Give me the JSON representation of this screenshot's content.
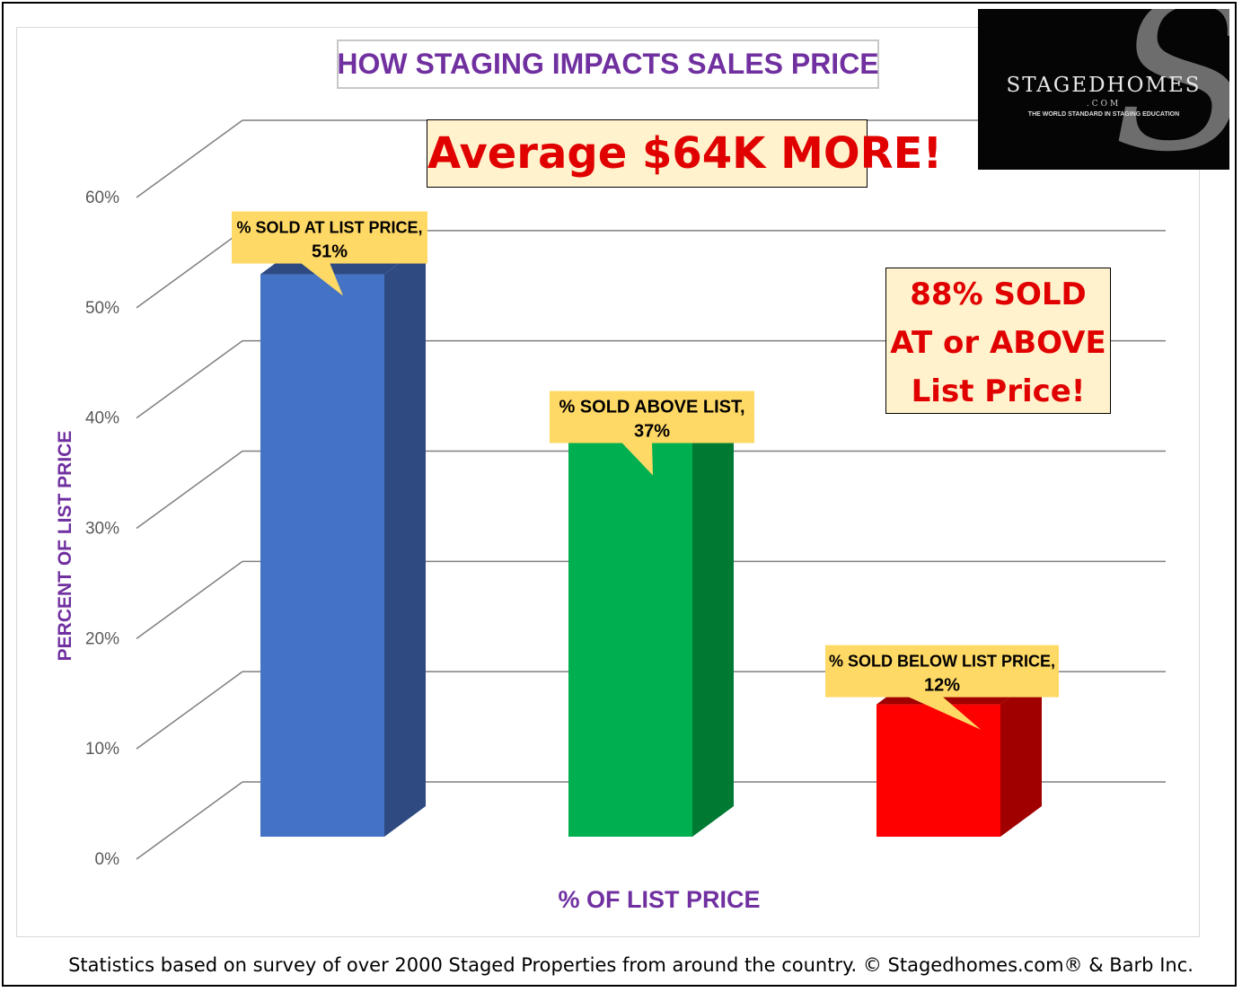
{
  "chart_data": {
    "type": "bar",
    "title": "HOW STAGING IMPACTS SALES PRICE",
    "xlabel": "% OF LIST PRICE",
    "ylabel": "PERCENT OF LIST PRICE",
    "ylim": [
      0,
      60
    ],
    "yticks": [
      "0%",
      "10%",
      "20%",
      "30%",
      "40%",
      "50%",
      "60%"
    ],
    "grid": true,
    "categories": [
      "% SOLD AT LIST PRICE,",
      "% SOLD ABOVE LIST,",
      "% SOLD BELOW LIST PRICE,"
    ],
    "values": [
      51,
      37,
      12
    ],
    "data_labels": [
      "51%",
      "37%",
      "12%"
    ],
    "colors": [
      "#4472c4",
      "#00b050",
      "#ff0000"
    ],
    "side_colors": [
      "#2e4a80",
      "#007a33",
      "#a00000"
    ]
  },
  "annotations": {
    "average_banner": "Average $64K MORE!",
    "sold_banner": [
      "88% SOLD",
      "AT or ABOVE",
      "List Price!"
    ]
  },
  "logo": {
    "name": "STAGEDHOMES",
    "suffix": ".COM",
    "tagline": "THE WORLD STANDARD IN STAGING EDUCATION"
  },
  "footer": "Statistics based on survey of over 2000 Staged Properties from around the country.  © Stagedhomes.com® & Barb Inc.",
  "styles": {
    "title_color": "#7030a0",
    "banner_text_color": "#e00000",
    "banner_bg": "#fff2cc",
    "callout_bg": "#ffd966"
  }
}
